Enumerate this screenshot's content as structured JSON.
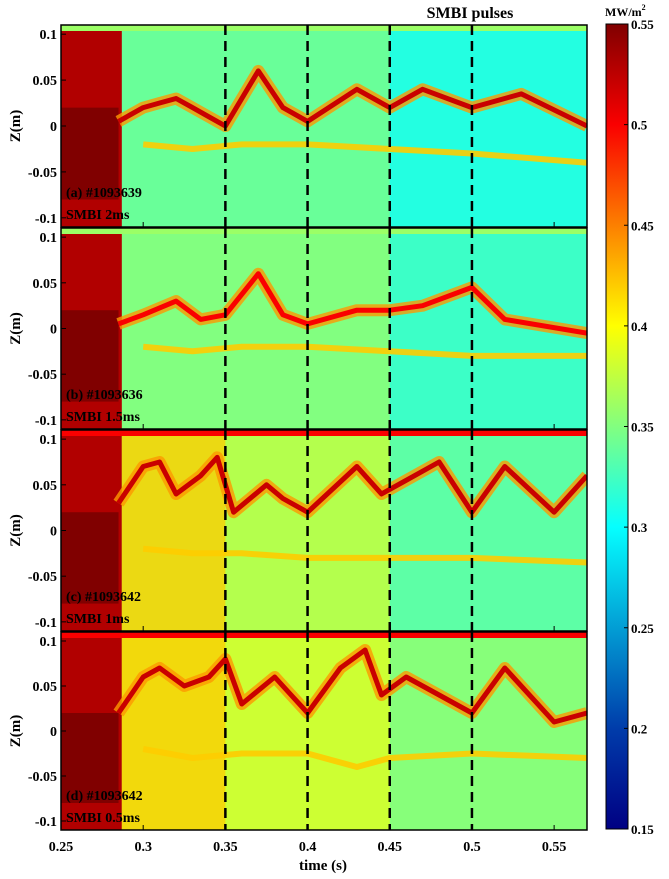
{
  "chart_data": {
    "type": "heatmap",
    "header_annotation": "SMBI pulses",
    "xlabel": "time (s)",
    "xlim": [
      0.25,
      0.57
    ],
    "x_ticks": [
      0.25,
      0.3,
      0.35,
      0.4,
      0.45,
      0.5,
      0.55
    ],
    "x_tick_labels": [
      "0.25",
      "0.3",
      "0.35",
      "0.4",
      "0.45",
      "0.5",
      "0.55"
    ],
    "ylim": [
      -0.11,
      0.11
    ],
    "y_ticks": [
      0.1,
      0.05,
      0,
      -0.05,
      -0.1
    ],
    "y_tick_labels": [
      "0.1",
      "0.05",
      "0",
      "-0.05",
      "-0.1"
    ],
    "smbi_pulse_times": [
      0.35,
      0.4,
      0.45,
      0.5
    ],
    "colorbar": {
      "label": "MW/m",
      "label_sup": "2",
      "min": 0.15,
      "max": 0.55,
      "ticks": [
        0.55,
        0.5,
        0.45,
        0.4,
        0.35,
        0.3,
        0.25,
        0.2,
        0.15
      ],
      "tick_labels": [
        "0.55",
        "0.5",
        "0.45",
        "0.4",
        "0.35",
        "0.3",
        "0.25",
        "0.2",
        "0.15"
      ]
    },
    "panels": [
      {
        "ylabel": "Z(m)",
        "label_line1": "(a) #1093639",
        "label_line2": "SMBI 2ms",
        "background_level": 0.34,
        "late_background_level": 0.3,
        "band_level": 0.52,
        "upper_band": [
          [
            0.285,
            0.005
          ],
          [
            0.3,
            0.02
          ],
          [
            0.31,
            0.025
          ],
          [
            0.32,
            0.03
          ],
          [
            0.33,
            0.02
          ],
          [
            0.34,
            0.01
          ],
          [
            0.35,
            0.0
          ],
          [
            0.37,
            0.06
          ],
          [
            0.385,
            0.02
          ],
          [
            0.4,
            0.005
          ],
          [
            0.43,
            0.04
          ],
          [
            0.45,
            0.02
          ],
          [
            0.47,
            0.04
          ],
          [
            0.5,
            0.02
          ],
          [
            0.53,
            0.035
          ],
          [
            0.57,
            0.0
          ]
        ],
        "lower_band": [
          [
            0.3,
            -0.02
          ],
          [
            0.33,
            -0.025
          ],
          [
            0.36,
            -0.02
          ],
          [
            0.4,
            -0.02
          ],
          [
            0.45,
            -0.025
          ],
          [
            0.5,
            -0.03
          ],
          [
            0.57,
            -0.04
          ]
        ]
      },
      {
        "ylabel": "Z(m)",
        "label_line1": "(b) #1093636",
        "label_line2": "SMBI 1.5ms",
        "background_level": 0.35,
        "late_background_level": 0.31,
        "band_level": 0.5,
        "upper_band": [
          [
            0.285,
            0.005
          ],
          [
            0.3,
            0.015
          ],
          [
            0.32,
            0.03
          ],
          [
            0.335,
            0.01
          ],
          [
            0.35,
            0.015
          ],
          [
            0.37,
            0.06
          ],
          [
            0.385,
            0.015
          ],
          [
            0.4,
            0.005
          ],
          [
            0.43,
            0.02
          ],
          [
            0.45,
            0.02
          ],
          [
            0.47,
            0.025
          ],
          [
            0.5,
            0.045
          ],
          [
            0.52,
            0.01
          ],
          [
            0.57,
            -0.005
          ]
        ],
        "lower_band": [
          [
            0.3,
            -0.02
          ],
          [
            0.33,
            -0.025
          ],
          [
            0.36,
            -0.02
          ],
          [
            0.4,
            -0.02
          ],
          [
            0.45,
            -0.025
          ],
          [
            0.5,
            -0.03
          ],
          [
            0.57,
            -0.03
          ]
        ]
      },
      {
        "ylabel": "Z(m)",
        "label_line1": "(c) #1093642",
        "label_line2": "SMBI 1ms",
        "background_level": 0.37,
        "late_background_level": 0.32,
        "band_level": 0.52,
        "upper_band": [
          [
            0.285,
            0.03
          ],
          [
            0.3,
            0.07
          ],
          [
            0.31,
            0.075
          ],
          [
            0.32,
            0.04
          ],
          [
            0.335,
            0.06
          ],
          [
            0.345,
            0.08
          ],
          [
            0.355,
            0.02
          ],
          [
            0.375,
            0.05
          ],
          [
            0.385,
            0.035
          ],
          [
            0.4,
            0.02
          ],
          [
            0.43,
            0.07
          ],
          [
            0.445,
            0.04
          ],
          [
            0.46,
            0.055
          ],
          [
            0.48,
            0.075
          ],
          [
            0.5,
            0.02
          ],
          [
            0.52,
            0.07
          ],
          [
            0.55,
            0.02
          ],
          [
            0.57,
            0.06
          ]
        ],
        "lower_band": [
          [
            0.3,
            -0.02
          ],
          [
            0.33,
            -0.025
          ],
          [
            0.36,
            -0.025
          ],
          [
            0.4,
            -0.03
          ],
          [
            0.45,
            -0.03
          ],
          [
            0.5,
            -0.03
          ],
          [
            0.57,
            -0.035
          ]
        ]
      },
      {
        "ylabel": "Z(m)",
        "label_line1": "(d) #1093642",
        "label_line2": "SMBI 0.5ms",
        "background_level": 0.38,
        "late_background_level": 0.34,
        "band_level": 0.52,
        "upper_band": [
          [
            0.285,
            0.02
          ],
          [
            0.3,
            0.06
          ],
          [
            0.31,
            0.07
          ],
          [
            0.325,
            0.05
          ],
          [
            0.34,
            0.06
          ],
          [
            0.35,
            0.08
          ],
          [
            0.36,
            0.03
          ],
          [
            0.38,
            0.06
          ],
          [
            0.39,
            0.04
          ],
          [
            0.4,
            0.02
          ],
          [
            0.42,
            0.07
          ],
          [
            0.435,
            0.09
          ],
          [
            0.445,
            0.04
          ],
          [
            0.46,
            0.06
          ],
          [
            0.48,
            0.04
          ],
          [
            0.5,
            0.02
          ],
          [
            0.52,
            0.07
          ],
          [
            0.55,
            0.01
          ],
          [
            0.57,
            0.02
          ]
        ],
        "lower_band": [
          [
            0.3,
            -0.02
          ],
          [
            0.33,
            -0.03
          ],
          [
            0.36,
            -0.025
          ],
          [
            0.4,
            -0.025
          ],
          [
            0.43,
            -0.04
          ],
          [
            0.45,
            -0.03
          ],
          [
            0.5,
            -0.025
          ],
          [
            0.57,
            -0.03
          ]
        ]
      }
    ]
  }
}
